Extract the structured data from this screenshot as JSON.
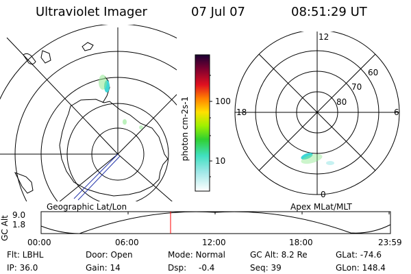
{
  "header": {
    "instrument": "Ultraviolet Imager",
    "date": "07 Jul 07",
    "time": "08:51:29 UT"
  },
  "colorbar": {
    "unit_label": "photon cm-2s-1",
    "tick_100": "100",
    "tick_10": "10"
  },
  "polar_plot": {
    "mlt_12": "12",
    "mlt_18": "18",
    "mlt_6": "6",
    "mlt_0": "0",
    "lat_60": "60",
    "lat_70": "70",
    "lat_80": "80"
  },
  "panel_labels": {
    "left": "Geographic Lat/Lon",
    "right": "Apex MLat/MLT"
  },
  "altitude_plot": {
    "axis_title": "GC Alt",
    "y_max": "9.0",
    "y_min": "1.8",
    "times": [
      "00:00",
      "06:00",
      "12:00",
      "18:00",
      "23:59"
    ]
  },
  "status": {
    "filter": "Flt: LBHL",
    "door": "Door: Open",
    "mode": "Mode: Normal",
    "gc_alt": "GC Alt: 8.2 Re",
    "glat": "GLat: -74.6",
    "ip": "IP: 36.0",
    "gain": "Gain: 14",
    "dsp_label": "Dsp:",
    "dsp_value": "-0.4",
    "seq": "Seq: 39",
    "glon": "GLon: 148.4"
  },
  "colors": {
    "ink": "#000000",
    "current_time_marker": "#ff0000",
    "aurora_cyan": "#3fd6d6",
    "aurora_green": "#8fe88f",
    "track_blue": "#2233aa"
  }
}
